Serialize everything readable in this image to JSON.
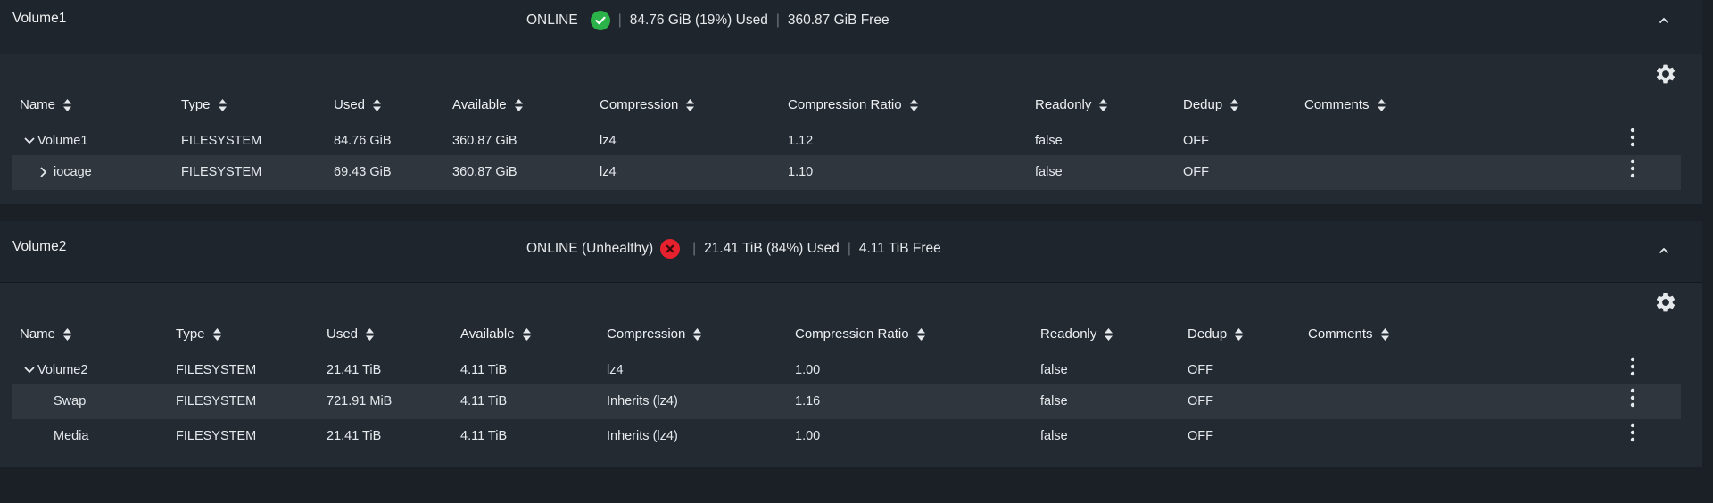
{
  "columns_v1": [
    "Name",
    "Type",
    "Used",
    "Available",
    "Compression",
    "Compression Ratio",
    "Readonly",
    "Dedup",
    "Comments"
  ],
  "columns_v2": [
    "Name",
    "Type",
    "Used",
    "Available",
    "Compression",
    "Compression Ratio",
    "Readonly",
    "Dedup",
    "Comments"
  ],
  "volume1": {
    "name": "Volume1",
    "status": "ONLINE",
    "used": "84.76 GiB (19%) Used",
    "free": "360.87 GiB Free",
    "rows": [
      {
        "name": "Volume1",
        "type": "FILESYSTEM",
        "used": "84.76 GiB",
        "available": "360.87 GiB",
        "compression": "lz4",
        "ratio": "1.12",
        "readonly": "false",
        "dedup": "OFF",
        "comments": ""
      },
      {
        "name": "iocage",
        "type": "FILESYSTEM",
        "used": "69.43 GiB",
        "available": "360.87 GiB",
        "compression": "lz4",
        "ratio": "1.10",
        "readonly": "false",
        "dedup": "OFF",
        "comments": ""
      }
    ]
  },
  "volume2": {
    "name": "Volume2",
    "status": "ONLINE (Unhealthy)",
    "used": "21.41 TiB (84%) Used",
    "free": "4.11 TiB Free",
    "rows": [
      {
        "name": "Volume2",
        "type": "FILESYSTEM",
        "used": "21.41 TiB",
        "available": "4.11 TiB",
        "compression": "lz4",
        "ratio": "1.00",
        "readonly": "false",
        "dedup": "OFF",
        "comments": ""
      },
      {
        "name": "Swap",
        "type": "FILESYSTEM",
        "used": "721.91 MiB",
        "available": "4.11 TiB",
        "compression": "Inherits (lz4)",
        "ratio": "1.16",
        "readonly": "false",
        "dedup": "OFF",
        "comments": ""
      },
      {
        "name": "Media",
        "type": "FILESYSTEM",
        "used": "21.41 TiB",
        "available": "4.11 TiB",
        "compression": "Inherits (lz4)",
        "ratio": "1.00",
        "readonly": "false",
        "dedup": "OFF",
        "comments": ""
      }
    ]
  },
  "icons": {
    "healthy": "check-circle-icon",
    "unhealthy": "x-circle-icon",
    "settings": "gear-icon",
    "collapse": "chevron-up-icon",
    "row_menu": "kebab-menu-icon",
    "sort": "sort-icon",
    "expand": "chevron-right-icon",
    "collapse_row": "chevron-down-icon"
  },
  "colors": {
    "ok": "#2bb34a",
    "error": "#e8212e",
    "panel": "#232a32",
    "header": "#1f252c",
    "stripe": "#2f363e",
    "page": "#1b2027"
  }
}
